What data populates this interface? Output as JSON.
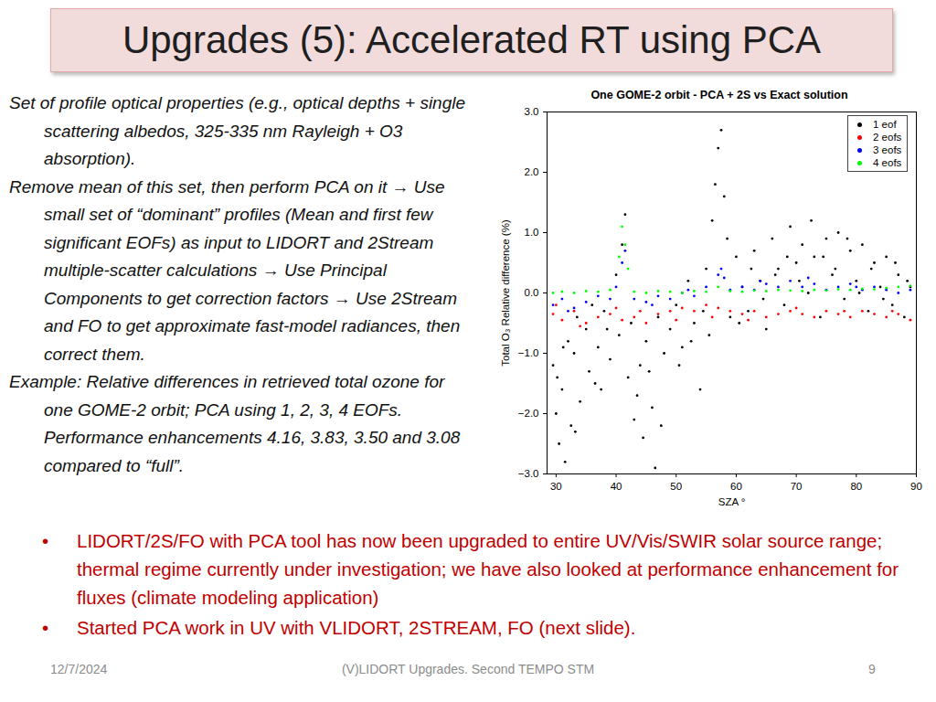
{
  "slide": {
    "title": "Upgrades (5): Accelerated RT using PCA",
    "left_text": [
      "Set of profile optical properties (e.g., optical depths + single scattering albedos, 325-335 nm Rayleigh + O3 absorption).",
      "Remove mean of this set, then perform PCA on it → Use small set of “dominant” profiles (Mean and first few significant EOFs) as input to LIDORT and 2Stream multiple-scatter calculations → Use Principal Components to get correction factors → Use 2Stream and FO to get approximate fast-model radiances, then correct them.",
      "Example: Relative differences in retrieved total ozone for one GOME-2 orbit; PCA using 1, 2, 3, 4 EOFs. Performance enhancements 4.16, 3.83, 3.50 and 3.08 compared to “full”."
    ],
    "bullets": [
      "LIDORT/2S/FO with PCA tool has now been upgraded to entire UV/Vis/SWIR solar source range; thermal regime currently under investigation; we have also looked at performance enhancement for fluxes (climate modeling application)",
      "Started PCA work in UV with VLIDORT, 2STREAM, FO (next slide)."
    ],
    "footer": {
      "date": "12/7/2024",
      "center": "(V)LIDORT Upgrades. Second TEMPO STM",
      "page": "9"
    }
  },
  "chart_data": {
    "type": "scatter",
    "title": "One GOME-2 orbit - PCA + 2S vs Exact solution",
    "x_label": "SZA °",
    "y_label": "Total O₃ Relative difference (%)",
    "xlim": [
      28.5,
      90
    ],
    "xticks": [
      30,
      40,
      50,
      60,
      70,
      80,
      90
    ],
    "ylim": [
      -3,
      3
    ],
    "yticks": [
      -3,
      -2,
      -1,
      0,
      1,
      2,
      3
    ],
    "grid": false,
    "legend": "top-right",
    "series": [
      {
        "name": "1 eof",
        "color": "#000000",
        "x": [
          29.5,
          30,
          30.5,
          31,
          31.5,
          32,
          32.5,
          33,
          33.5,
          34,
          35,
          35.5,
          36,
          37,
          37.5,
          38,
          39,
          40,
          40.5,
          41,
          41.5,
          42,
          42.5,
          43,
          44,
          44.5,
          45,
          46,
          46.5,
          47,
          48,
          49,
          50,
          51,
          52,
          53,
          54,
          55,
          55.5,
          56,
          56.5,
          57,
          57.5,
          58,
          58.5,
          59,
          60,
          61,
          62,
          63,
          64,
          65,
          66,
          67,
          68,
          69,
          70,
          71,
          72,
          73,
          74,
          75,
          76,
          77,
          78,
          79,
          80,
          81,
          82,
          83,
          84,
          85,
          86,
          87,
          88,
          89,
          30.2,
          31.2,
          33.2,
          36.5,
          38.5,
          43.5,
          45.5,
          47.5,
          50.5,
          52.5,
          54.5,
          60.5,
          62.5,
          64.5,
          66.5,
          68.5,
          70.5,
          72.5,
          74.5,
          76.5,
          78.5,
          80.5,
          82.5,
          84.5,
          86.5,
          88.5
        ],
        "values": [
          -1.2,
          -2.0,
          -2.5,
          -1.6,
          -2.8,
          -0.8,
          -2.2,
          -1.0,
          -0.4,
          -1.8,
          -0.6,
          -1.3,
          -0.2,
          -0.9,
          -1.6,
          -0.3,
          -1.1,
          0.3,
          -0.7,
          0.8,
          1.3,
          -1.4,
          -0.5,
          -2.1,
          -1.2,
          -2.4,
          -0.8,
          -1.9,
          -2.9,
          -0.4,
          -1.0,
          -0.6,
          -0.2,
          -0.9,
          0.2,
          -0.5,
          -1.6,
          0.4,
          -0.7,
          1.2,
          1.8,
          2.4,
          2.7,
          1.6,
          0.9,
          -0.4,
          0.6,
          0.1,
          -0.3,
          0.7,
          0.2,
          -0.6,
          0.9,
          0.4,
          -0.2,
          1.1,
          0.5,
          0.8,
          0.0,
          0.6,
          -0.4,
          0.9,
          0.3,
          1.0,
          -0.1,
          0.7,
          0.2,
          0.8,
          -0.3,
          0.5,
          0.1,
          0.6,
          -0.2,
          0.3,
          -0.4,
          0.1,
          -1.4,
          -0.9,
          -2.3,
          -1.5,
          -0.6,
          -1.7,
          -1.3,
          -2.2,
          -1.2,
          -0.8,
          -0.3,
          -0.5,
          0.4,
          -0.1,
          0.3,
          0.6,
          0.2,
          1.2,
          0.6,
          0.4,
          0.9,
          0.0,
          0.4,
          -0.1,
          0.5,
          0.2
        ]
      },
      {
        "name": "2 eofs",
        "color": "#ff0000",
        "x": [
          29.5,
          31,
          33,
          35,
          37,
          39,
          41,
          43,
          45,
          47,
          49,
          51,
          53,
          55,
          57,
          59,
          61,
          63,
          65,
          67,
          69,
          71,
          73,
          75,
          77,
          79,
          81,
          83,
          85,
          87,
          89,
          30,
          34,
          40,
          44,
          50,
          56,
          62,
          70,
          78,
          86
        ],
        "values": [
          -0.35,
          -0.45,
          -0.3,
          -0.5,
          -0.4,
          -0.35,
          -0.45,
          -0.4,
          -0.5,
          -0.35,
          -0.3,
          -0.25,
          -0.3,
          -0.2,
          -0.25,
          -0.3,
          -0.35,
          -0.3,
          -0.4,
          -0.35,
          -0.3,
          -0.35,
          -0.4,
          -0.3,
          -0.35,
          -0.4,
          -0.3,
          -0.35,
          -0.4,
          -0.35,
          -0.45,
          -0.2,
          -0.55,
          -0.25,
          -0.3,
          -0.45,
          -0.4,
          -0.45,
          -0.25,
          -0.3,
          -0.3
        ]
      },
      {
        "name": "3 eofs",
        "color": "#0000ff",
        "x": [
          29.5,
          31,
          33,
          35,
          37,
          39,
          41,
          41.5,
          43,
          45,
          47,
          49,
          51,
          53,
          55,
          57,
          57.5,
          59,
          61,
          63,
          65,
          67,
          69,
          71,
          73,
          75,
          77,
          79,
          81,
          83,
          85,
          87,
          89,
          32,
          40,
          46,
          52,
          58,
          64,
          72,
          80
        ],
        "values": [
          -0.2,
          -0.1,
          -0.25,
          -0.15,
          -0.05,
          -0.1,
          0.5,
          0.7,
          -0.1,
          -0.15,
          -0.05,
          -0.1,
          0.0,
          -0.05,
          0.1,
          0.3,
          0.4,
          0.05,
          0.1,
          0.05,
          0.15,
          0.1,
          0.2,
          0.1,
          0.15,
          0.05,
          0.1,
          0.15,
          0.05,
          0.1,
          0.05,
          0.0,
          0.05,
          -0.3,
          0.1,
          -0.2,
          0.05,
          0.25,
          0.2,
          0.25,
          0.1
        ]
      },
      {
        "name": "4 eofs",
        "color": "#00ff00",
        "x": [
          29.5,
          31,
          33,
          35,
          37,
          39,
          40.5,
          41,
          41.5,
          43,
          45,
          47,
          49,
          51,
          53,
          55,
          57,
          59,
          61,
          63,
          65,
          67,
          69,
          71,
          73,
          75,
          77,
          79,
          81,
          83,
          85,
          87,
          89,
          42
        ],
        "values": [
          0.0,
          0.02,
          0.0,
          0.03,
          0.02,
          0.05,
          0.6,
          1.1,
          0.8,
          0.02,
          0.0,
          0.03,
          0.02,
          0.0,
          0.03,
          0.02,
          0.1,
          0.03,
          0.02,
          0.04,
          0.03,
          0.05,
          0.04,
          0.03,
          0.05,
          0.04,
          0.06,
          0.05,
          0.07,
          0.06,
          0.08,
          0.1,
          0.12,
          0.4
        ]
      }
    ]
  }
}
